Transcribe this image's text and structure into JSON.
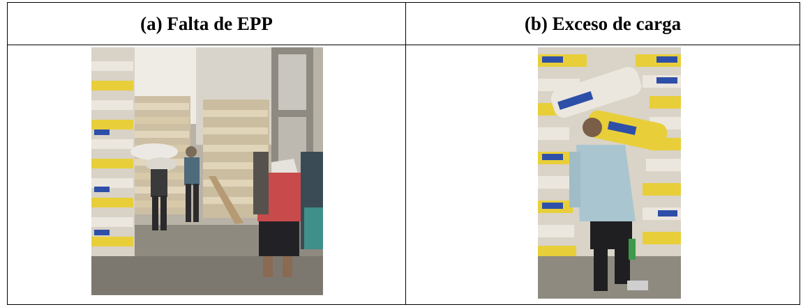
{
  "table": {
    "columns": [
      {
        "header": "(a) Falta de EPP",
        "image": "warehouse-workers-carrying-sacks-photo"
      },
      {
        "header": "(b) Exceso de carga",
        "image": "worker-carrying-overloaded-sacks-photo"
      }
    ]
  },
  "colors": {
    "border": "#000000",
    "sack_white": "#e9e4dc",
    "sack_yellow": "#e8cf3a",
    "label_blue": "#2e4fa8",
    "floor": "#8f8a80"
  }
}
